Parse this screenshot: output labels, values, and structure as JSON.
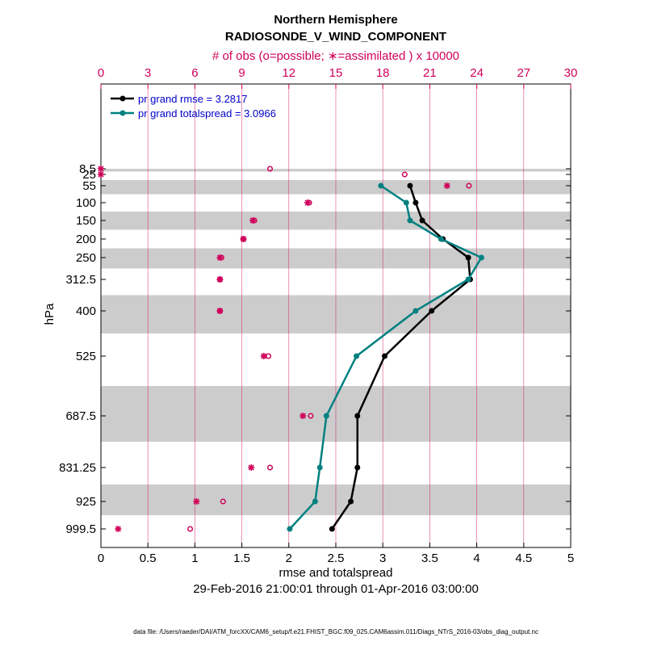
{
  "chart_data": {
    "type": "line",
    "title": "Northern Hemisphere",
    "subtitle": "RADIOSONDE_V_WIND_COMPONENT",
    "top_axis_label": "# of obs (o=possible; ∗=assimilated ) x 10000",
    "xlabel": "rmse and totalspread",
    "ylabel": "hPa",
    "date_range": "29-Feb-2016 21:00:01 through 01-Apr-2016 03:00:00",
    "footer": "data file: /Users/raeder/DAI/ATM_forcXX/CAM6_setup/f.e21.FHIST_BGC.f09_025.CAM6assim.011/Diags_NTrS_2016-03/obs_diag_output.nc",
    "xlim": [
      0,
      5
    ],
    "x_ticks": [
      "0",
      "0.5",
      "1",
      "1.5",
      "2",
      "2.5",
      "3",
      "3.5",
      "4",
      "4.5",
      "5"
    ],
    "top_xlim": [
      0,
      30
    ],
    "top_ticks": [
      "0",
      "3",
      "6",
      "9",
      "12",
      "15",
      "18",
      "21",
      "24",
      "27",
      "30"
    ],
    "levels": [
      8.5,
      25,
      55,
      100,
      150,
      200,
      250,
      312.5,
      400,
      525,
      687.5,
      831.25,
      925,
      999.5
    ],
    "level_labels": [
      "8.5",
      "25",
      "55",
      "100",
      "150",
      "200",
      "250",
      "312.5",
      "400",
      "525",
      "687.5",
      "831.25",
      "925",
      "999.5"
    ],
    "series": [
      {
        "name": "rmse",
        "legend": "pr grand rmse = 3.2817",
        "color": "#000000",
        "levels": [
          55,
          100,
          150,
          200,
          250,
          312.5,
          400,
          525,
          687.5,
          831.25,
          925,
          999.5
        ],
        "values": [
          3.29,
          3.35,
          3.42,
          3.64,
          3.91,
          3.93,
          3.52,
          3.02,
          2.73,
          2.73,
          2.66,
          2.46
        ]
      },
      {
        "name": "totalspread",
        "legend": "pr grand totalspread = 3.0966",
        "color": "#008080",
        "levels": [
          55,
          100,
          150,
          200,
          250,
          312.5,
          400,
          525,
          687.5,
          831.25,
          925,
          999.5
        ],
        "values": [
          2.98,
          3.25,
          3.29,
          3.62,
          4.05,
          3.91,
          3.35,
          2.72,
          2.4,
          2.33,
          2.28,
          2.01
        ]
      }
    ],
    "obs_possible": {
      "levels": [
        8.5,
        25,
        55,
        100,
        150,
        200,
        250,
        312.5,
        400,
        525,
        687.5,
        831.25,
        925,
        999.5
      ],
      "values": [
        10.8,
        19.4,
        23.5,
        13.3,
        9.8,
        9.1,
        7.7,
        7.6,
        7.6,
        10.7,
        13.4,
        10.8,
        7.8,
        5.7
      ]
    },
    "obs_assimilated": {
      "levels": [
        8.5,
        25,
        55,
        100,
        150,
        200,
        250,
        312.5,
        400,
        525,
        687.5,
        831.25,
        925,
        999.5
      ],
      "values": [
        0.0,
        0.0,
        22.1,
        13.2,
        9.7,
        9.1,
        7.6,
        7.6,
        7.6,
        10.4,
        12.9,
        9.6,
        6.1,
        1.1
      ]
    },
    "colors": {
      "magenta": "#d0005a",
      "band": "#cccccc"
    }
  }
}
